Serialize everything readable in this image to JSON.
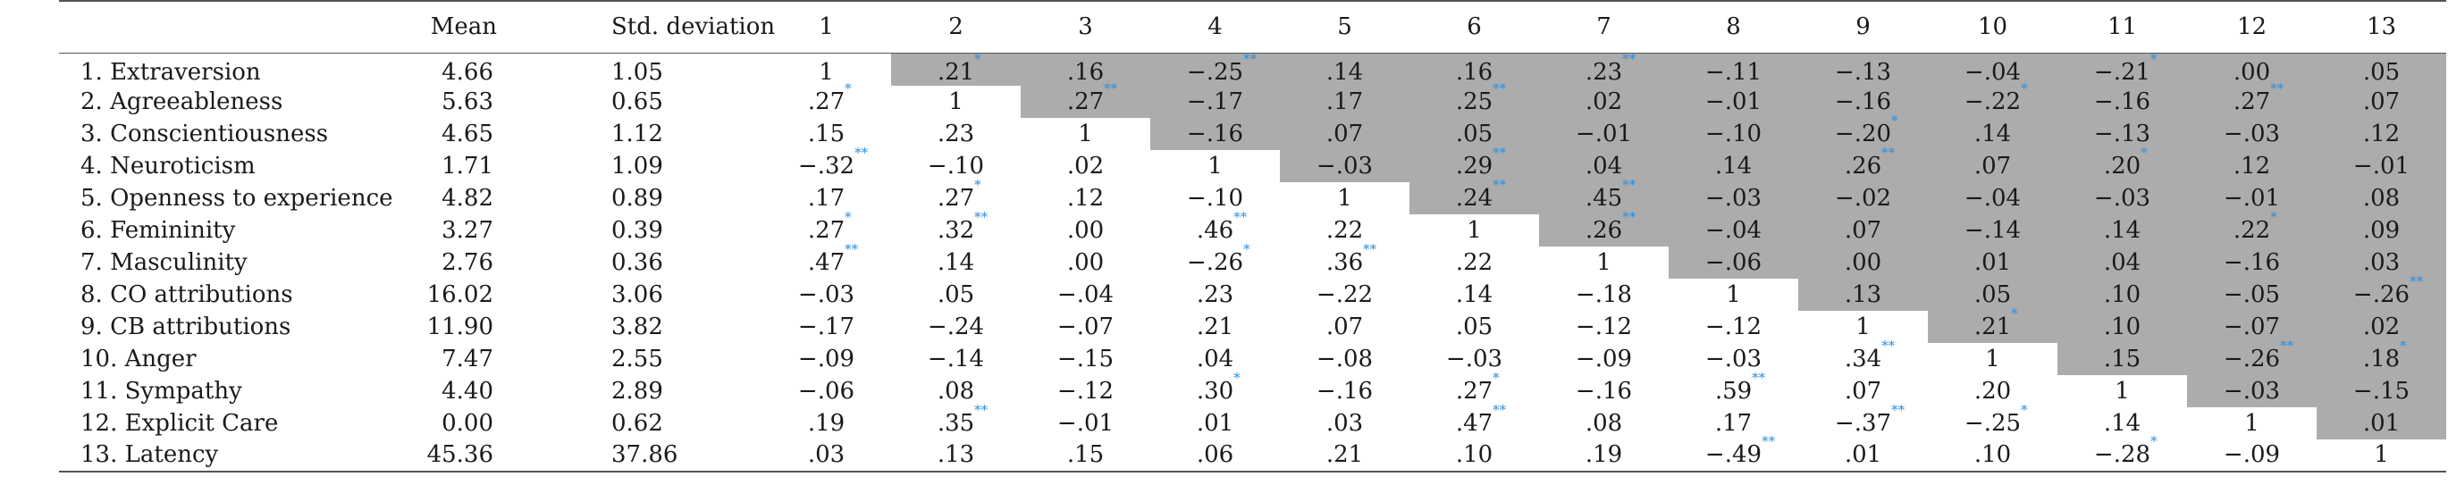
{
  "table": {
    "headers": {
      "label": "",
      "mean": "Mean",
      "sd": "Std. deviation",
      "cols": [
        "1",
        "2",
        "3",
        "4",
        "5",
        "6",
        "7",
        "8",
        "9",
        "10",
        "11",
        "12",
        "13"
      ]
    },
    "rows": [
      {
        "label": "1. Extraversion",
        "mean": "4.66",
        "sd": "1.05",
        "cells": [
          {
            "v": "1",
            "s": ""
          },
          {
            "v": ".21",
            "s": "*"
          },
          {
            "v": ".16",
            "s": ""
          },
          {
            "v": "−.25",
            "s": "**"
          },
          {
            "v": ".14",
            "s": ""
          },
          {
            "v": ".16",
            "s": ""
          },
          {
            "v": ".23",
            "s": "**"
          },
          {
            "v": "−.11",
            "s": ""
          },
          {
            "v": "−.13",
            "s": ""
          },
          {
            "v": "−.04",
            "s": ""
          },
          {
            "v": "−.21",
            "s": "*"
          },
          {
            "v": ".00",
            "s": ""
          },
          {
            "v": ".05",
            "s": ""
          }
        ]
      },
      {
        "label": "2. Agreeableness",
        "mean": "5.63",
        "sd": "0.65",
        "cells": [
          {
            "v": ".27",
            "s": "*"
          },
          {
            "v": "1",
            "s": ""
          },
          {
            "v": ".27",
            "s": "**"
          },
          {
            "v": "−.17",
            "s": ""
          },
          {
            "v": ".17",
            "s": ""
          },
          {
            "v": ".25",
            "s": "**"
          },
          {
            "v": ".02",
            "s": ""
          },
          {
            "v": "−.01",
            "s": ""
          },
          {
            "v": "−.16",
            "s": ""
          },
          {
            "v": "−.22",
            "s": "*"
          },
          {
            "v": "−.16",
            "s": ""
          },
          {
            "v": ".27",
            "s": "**"
          },
          {
            "v": ".07",
            "s": ""
          }
        ]
      },
      {
        "label": "3. Conscientiousness",
        "mean": "4.65",
        "sd": "1.12",
        "cells": [
          {
            "v": ".15",
            "s": ""
          },
          {
            "v": ".23",
            "s": ""
          },
          {
            "v": "1",
            "s": ""
          },
          {
            "v": "−.16",
            "s": ""
          },
          {
            "v": ".07",
            "s": ""
          },
          {
            "v": ".05",
            "s": ""
          },
          {
            "v": "−.01",
            "s": ""
          },
          {
            "v": "−.10",
            "s": ""
          },
          {
            "v": "−.20",
            "s": "*"
          },
          {
            "v": ".14",
            "s": ""
          },
          {
            "v": "−.13",
            "s": ""
          },
          {
            "v": "−.03",
            "s": ""
          },
          {
            "v": ".12",
            "s": ""
          }
        ]
      },
      {
        "label": "4. Neuroticism",
        "mean": "1.71",
        "sd": "1.09",
        "cells": [
          {
            "v": "−.32",
            "s": "**"
          },
          {
            "v": "−.10",
            "s": ""
          },
          {
            "v": ".02",
            "s": ""
          },
          {
            "v": "1",
            "s": ""
          },
          {
            "v": "−.03",
            "s": ""
          },
          {
            "v": ".29",
            "s": "**"
          },
          {
            "v": ".04",
            "s": ""
          },
          {
            "v": ".14",
            "s": ""
          },
          {
            "v": ".26",
            "s": "**"
          },
          {
            "v": ".07",
            "s": ""
          },
          {
            "v": ".20",
            "s": "*"
          },
          {
            "v": ".12",
            "s": ""
          },
          {
            "v": "−.01",
            "s": ""
          }
        ]
      },
      {
        "label": "5. Openness to experience",
        "mean": "4.82",
        "sd": "0.89",
        "cells": [
          {
            "v": ".17",
            "s": ""
          },
          {
            "v": ".27",
            "s": "*"
          },
          {
            "v": ".12",
            "s": ""
          },
          {
            "v": "−.10",
            "s": ""
          },
          {
            "v": "1",
            "s": ""
          },
          {
            "v": ".24",
            "s": "**"
          },
          {
            "v": ".45",
            "s": "**"
          },
          {
            "v": "−.03",
            "s": ""
          },
          {
            "v": "−.02",
            "s": ""
          },
          {
            "v": "−.04",
            "s": ""
          },
          {
            "v": "−.03",
            "s": ""
          },
          {
            "v": "−.01",
            "s": ""
          },
          {
            "v": ".08",
            "s": ""
          }
        ]
      },
      {
        "label": "6. Femininity",
        "mean": "3.27",
        "sd": "0.39",
        "cells": [
          {
            "v": ".27",
            "s": "*"
          },
          {
            "v": ".32",
            "s": "**"
          },
          {
            "v": ".00",
            "s": ""
          },
          {
            "v": ".46",
            "s": "**"
          },
          {
            "v": ".22",
            "s": ""
          },
          {
            "v": "1",
            "s": ""
          },
          {
            "v": ".26",
            "s": "**"
          },
          {
            "v": "−.04",
            "s": ""
          },
          {
            "v": ".07",
            "s": ""
          },
          {
            "v": "−.14",
            "s": ""
          },
          {
            "v": ".14",
            "s": ""
          },
          {
            "v": ".22",
            "s": "*"
          },
          {
            "v": ".09",
            "s": ""
          }
        ]
      },
      {
        "label": "7. Masculinity",
        "mean": "2.76",
        "sd": "0.36",
        "cells": [
          {
            "v": ".47",
            "s": "**"
          },
          {
            "v": ".14",
            "s": ""
          },
          {
            "v": ".00",
            "s": ""
          },
          {
            "v": "−.26",
            "s": "*"
          },
          {
            "v": ".36",
            "s": "**"
          },
          {
            "v": ".22",
            "s": ""
          },
          {
            "v": "1",
            "s": ""
          },
          {
            "v": "−.06",
            "s": ""
          },
          {
            "v": ".00",
            "s": ""
          },
          {
            "v": ".01",
            "s": ""
          },
          {
            "v": ".04",
            "s": ""
          },
          {
            "v": "−.16",
            "s": ""
          },
          {
            "v": ".03",
            "s": ""
          }
        ]
      },
      {
        "label": "8. CO attributions",
        "mean": "16.02",
        "sd": "3.06",
        "cells": [
          {
            "v": "−.03",
            "s": ""
          },
          {
            "v": ".05",
            "s": ""
          },
          {
            "v": "−.04",
            "s": ""
          },
          {
            "v": ".23",
            "s": ""
          },
          {
            "v": "−.22",
            "s": ""
          },
          {
            "v": ".14",
            "s": ""
          },
          {
            "v": "−.18",
            "s": ""
          },
          {
            "v": "1",
            "s": ""
          },
          {
            "v": ".13",
            "s": ""
          },
          {
            "v": ".05",
            "s": ""
          },
          {
            "v": ".10",
            "s": ""
          },
          {
            "v": "−.05",
            "s": ""
          },
          {
            "v": "−.26",
            "s": "**"
          }
        ]
      },
      {
        "label": "9. CB attributions",
        "mean": "11.90",
        "sd": "3.82",
        "cells": [
          {
            "v": "−.17",
            "s": ""
          },
          {
            "v": "−.24",
            "s": ""
          },
          {
            "v": "−.07",
            "s": ""
          },
          {
            "v": ".21",
            "s": ""
          },
          {
            "v": ".07",
            "s": ""
          },
          {
            "v": ".05",
            "s": ""
          },
          {
            "v": "−.12",
            "s": ""
          },
          {
            "v": "−.12",
            "s": ""
          },
          {
            "v": "1",
            "s": ""
          },
          {
            "v": ".21",
            "s": "*"
          },
          {
            "v": ".10",
            "s": ""
          },
          {
            "v": "−.07",
            "s": ""
          },
          {
            "v": ".02",
            "s": ""
          }
        ]
      },
      {
        "label": "10. Anger",
        "mean": "7.47",
        "sd": "2.55",
        "cells": [
          {
            "v": "−.09",
            "s": ""
          },
          {
            "v": "−.14",
            "s": ""
          },
          {
            "v": "−.15",
            "s": ""
          },
          {
            "v": ".04",
            "s": ""
          },
          {
            "v": "−.08",
            "s": ""
          },
          {
            "v": "−.03",
            "s": ""
          },
          {
            "v": "−.09",
            "s": ""
          },
          {
            "v": "−.03",
            "s": ""
          },
          {
            "v": ".34",
            "s": "**"
          },
          {
            "v": "1",
            "s": ""
          },
          {
            "v": ".15",
            "s": ""
          },
          {
            "v": "−.26",
            "s": "**"
          },
          {
            "v": ".18",
            "s": "*"
          }
        ]
      },
      {
        "label": "11. Sympathy",
        "mean": "4.40",
        "sd": "2.89",
        "cells": [
          {
            "v": "−.06",
            "s": ""
          },
          {
            "v": ".08",
            "s": ""
          },
          {
            "v": "−.12",
            "s": ""
          },
          {
            "v": ".30",
            "s": "*"
          },
          {
            "v": "−.16",
            "s": ""
          },
          {
            "v": ".27",
            "s": "*"
          },
          {
            "v": "−.16",
            "s": ""
          },
          {
            "v": ".59",
            "s": "**"
          },
          {
            "v": ".07",
            "s": ""
          },
          {
            "v": ".20",
            "s": ""
          },
          {
            "v": "1",
            "s": ""
          },
          {
            "v": "−.03",
            "s": ""
          },
          {
            "v": "−.15",
            "s": ""
          }
        ]
      },
      {
        "label": "12. Explicit Care",
        "mean": "0.00",
        "sd": "0.62",
        "cells": [
          {
            "v": ".19",
            "s": ""
          },
          {
            "v": ".35",
            "s": "**"
          },
          {
            "v": "−.01",
            "s": ""
          },
          {
            "v": ".01",
            "s": ""
          },
          {
            "v": ".03",
            "s": ""
          },
          {
            "v": ".47",
            "s": "**"
          },
          {
            "v": ".08",
            "s": ""
          },
          {
            "v": ".17",
            "s": ""
          },
          {
            "v": "−.37",
            "s": "**"
          },
          {
            "v": "−.25",
            "s": "*"
          },
          {
            "v": ".14",
            "s": ""
          },
          {
            "v": "1",
            "s": ""
          },
          {
            "v": ".01",
            "s": ""
          }
        ]
      },
      {
        "label": "13. Latency",
        "mean": "45.36",
        "sd": "37.86",
        "cells": [
          {
            "v": ".03",
            "s": ""
          },
          {
            "v": ".13",
            "s": ""
          },
          {
            "v": ".15",
            "s": ""
          },
          {
            "v": ".06",
            "s": ""
          },
          {
            "v": ".21",
            "s": ""
          },
          {
            "v": ".10",
            "s": ""
          },
          {
            "v": ".19",
            "s": ""
          },
          {
            "v": "−.49",
            "s": "**"
          },
          {
            "v": ".01",
            "s": ""
          },
          {
            "v": ".10",
            "s": ""
          },
          {
            "v": "−.28",
            "s": "*"
          },
          {
            "v": "−.09",
            "s": ""
          },
          {
            "v": "1",
            "s": ""
          }
        ]
      }
    ],
    "shade_color": "#acacac",
    "star_color": "#2a8fe0"
  }
}
